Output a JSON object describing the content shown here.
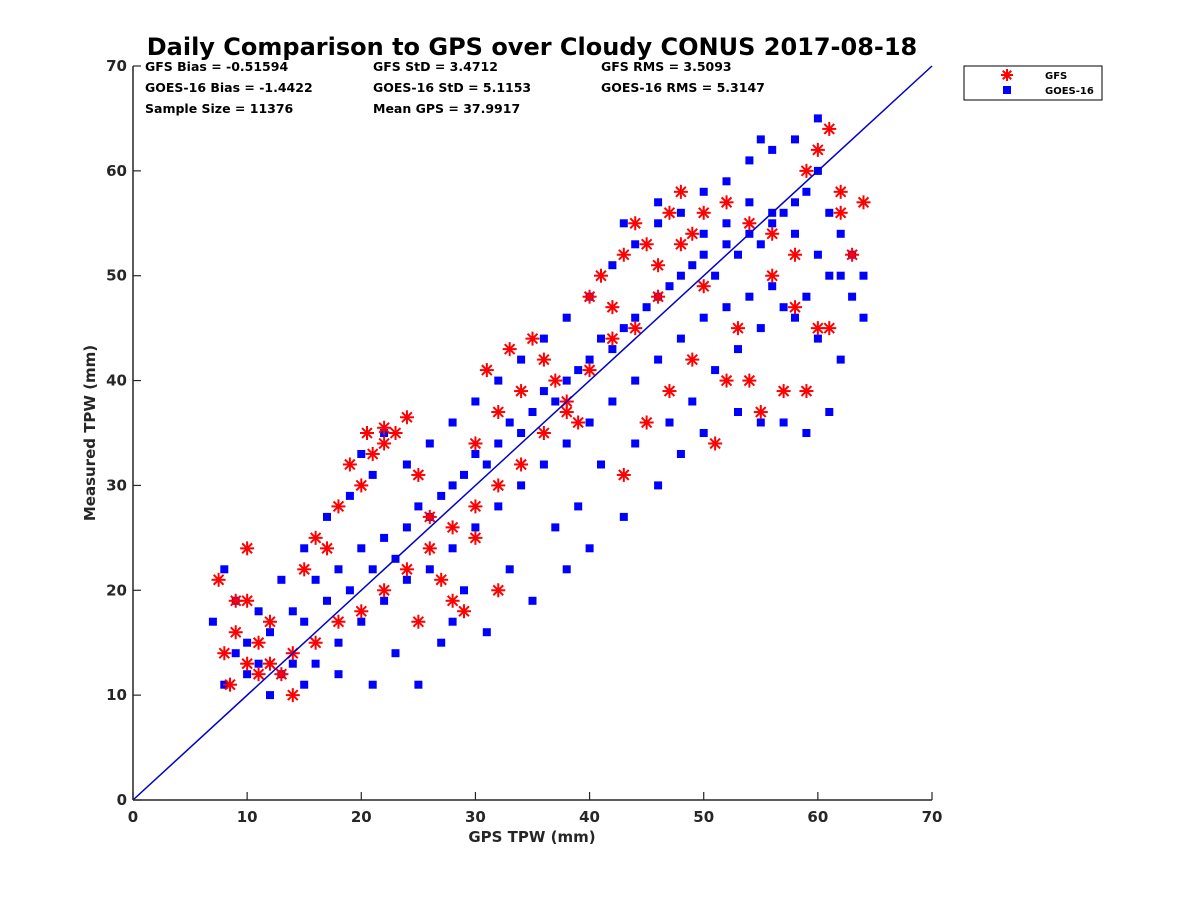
{
  "chart_data": {
    "type": "scatter",
    "title": "Daily Comparison to GPS over Cloudy CONUS 2017-08-18",
    "xlabel": "GPS TPW (mm)",
    "ylabel": "Measured TPW (mm)",
    "xlim": [
      0,
      70
    ],
    "ylim": [
      0,
      70
    ],
    "xticks": [
      0,
      10,
      20,
      30,
      40,
      50,
      60,
      70
    ],
    "yticks": [
      0,
      10,
      20,
      30,
      40,
      50,
      60,
      70
    ],
    "grid": false,
    "legend_position": "outside top-right",
    "stats": [
      {
        "label": "GFS Bias",
        "value": "-0.51594"
      },
      {
        "label": "GFS StD",
        "value": "3.4712"
      },
      {
        "label": "GFS RMS",
        "value": "3.5093"
      },
      {
        "label": "GOES-16 Bias",
        "value": "-1.4422"
      },
      {
        "label": "GOES-16 StD",
        "value": "5.1153"
      },
      {
        "label": "GOES-16 RMS",
        "value": "5.3147"
      },
      {
        "label": "Sample Size",
        "value": "11376"
      },
      {
        "label": "Mean GPS",
        "value": "37.9917"
      }
    ],
    "reference_line": {
      "name": "1:1 line",
      "x": [
        0,
        70
      ],
      "y": [
        0,
        70
      ],
      "color": "#0000cc"
    },
    "series": [
      {
        "name": "GOES-16",
        "marker": "square",
        "color": "#0000ff",
        "points": [
          [
            8,
            11
          ],
          [
            9,
            14
          ],
          [
            10,
            12
          ],
          [
            11,
            13
          ],
          [
            12,
            16
          ],
          [
            13,
            12
          ],
          [
            14,
            18
          ],
          [
            15,
            17
          ],
          [
            16,
            21
          ],
          [
            17,
            19
          ],
          [
            18,
            22
          ],
          [
            19,
            20
          ],
          [
            20,
            24
          ],
          [
            21,
            22
          ],
          [
            22,
            25
          ],
          [
            23,
            23
          ],
          [
            24,
            26
          ],
          [
            25,
            28
          ],
          [
            26,
            27
          ],
          [
            27,
            29
          ],
          [
            28,
            30
          ],
          [
            29,
            31
          ],
          [
            30,
            33
          ],
          [
            31,
            32
          ],
          [
            32,
            34
          ],
          [
            33,
            36
          ],
          [
            34,
            35
          ],
          [
            35,
            37
          ],
          [
            36,
            39
          ],
          [
            37,
            38
          ],
          [
            38,
            40
          ],
          [
            39,
            41
          ],
          [
            40,
            42
          ],
          [
            41,
            44
          ],
          [
            42,
            43
          ],
          [
            43,
            45
          ],
          [
            44,
            46
          ],
          [
            45,
            47
          ],
          [
            46,
            48
          ],
          [
            47,
            49
          ],
          [
            48,
            50
          ],
          [
            49,
            51
          ],
          [
            50,
            52
          ],
          [
            51,
            50
          ],
          [
            52,
            53
          ],
          [
            53,
            52
          ],
          [
            54,
            54
          ],
          [
            55,
            53
          ],
          [
            56,
            55
          ],
          [
            57,
            56
          ],
          [
            58,
            57
          ],
          [
            59,
            58
          ],
          [
            60,
            60
          ],
          [
            61,
            56
          ],
          [
            62,
            54
          ],
          [
            63,
            52
          ],
          [
            64,
            50
          ],
          [
            20,
            17
          ],
          [
            22,
            19
          ],
          [
            24,
            21
          ],
          [
            26,
            22
          ],
          [
            28,
            24
          ],
          [
            30,
            26
          ],
          [
            32,
            28
          ],
          [
            34,
            30
          ],
          [
            36,
            32
          ],
          [
            38,
            34
          ],
          [
            40,
            36
          ],
          [
            42,
            38
          ],
          [
            44,
            40
          ],
          [
            46,
            42
          ],
          [
            48,
            44
          ],
          [
            50,
            46
          ],
          [
            52,
            47
          ],
          [
            54,
            48
          ],
          [
            56,
            49
          ],
          [
            58,
            46
          ],
          [
            60,
            44
          ],
          [
            62,
            42
          ],
          [
            16,
            13
          ],
          [
            18,
            15
          ],
          [
            12,
            10
          ],
          [
            25,
            11
          ],
          [
            28,
            17
          ],
          [
            31,
            16
          ],
          [
            35,
            19
          ],
          [
            38,
            22
          ],
          [
            40,
            24
          ],
          [
            43,
            27
          ],
          [
            46,
            30
          ],
          [
            48,
            33
          ],
          [
            50,
            35
          ],
          [
            53,
            37
          ],
          [
            55,
            36
          ],
          [
            57,
            36
          ],
          [
            59,
            35
          ],
          [
            61,
            37
          ],
          [
            43,
            55
          ],
          [
            46,
            57
          ],
          [
            50,
            58
          ],
          [
            52,
            59
          ],
          [
            54,
            61
          ],
          [
            56,
            62
          ],
          [
            58,
            63
          ],
          [
            60,
            65
          ],
          [
            55,
            63
          ],
          [
            20,
            33
          ],
          [
            22,
            35
          ],
          [
            24,
            32
          ],
          [
            26,
            34
          ],
          [
            28,
            36
          ],
          [
            30,
            38
          ],
          [
            32,
            40
          ],
          [
            34,
            42
          ],
          [
            36,
            44
          ],
          [
            38,
            46
          ],
          [
            40,
            48
          ],
          [
            42,
            51
          ],
          [
            44,
            53
          ],
          [
            46,
            55
          ],
          [
            48,
            56
          ],
          [
            17,
            27
          ],
          [
            19,
            29
          ],
          [
            21,
            31
          ],
          [
            15,
            24
          ],
          [
            13,
            21
          ],
          [
            11,
            18
          ],
          [
            9,
            19
          ],
          [
            7,
            17
          ],
          [
            8,
            22
          ],
          [
            10,
            15
          ],
          [
            14,
            13
          ],
          [
            15,
            11
          ],
          [
            18,
            12
          ],
          [
            21,
            11
          ],
          [
            23,
            14
          ],
          [
            27,
            15
          ],
          [
            29,
            20
          ],
          [
            33,
            22
          ],
          [
            37,
            26
          ],
          [
            39,
            28
          ],
          [
            41,
            32
          ],
          [
            44,
            34
          ],
          [
            47,
            36
          ],
          [
            49,
            38
          ],
          [
            51,
            41
          ],
          [
            53,
            43
          ],
          [
            55,
            45
          ],
          [
            57,
            47
          ],
          [
            59,
            48
          ],
          [
            61,
            50
          ],
          [
            63,
            48
          ],
          [
            64,
            46
          ],
          [
            62,
            50
          ],
          [
            60,
            52
          ],
          [
            58,
            54
          ],
          [
            56,
            56
          ],
          [
            54,
            57
          ],
          [
            52,
            55
          ],
          [
            50,
            54
          ]
        ]
      },
      {
        "name": "GFS",
        "marker": "asterisk",
        "color": "#ff0000",
        "points": [
          [
            7.5,
            21
          ],
          [
            8,
            14
          ],
          [
            8.5,
            11
          ],
          [
            9,
            16
          ],
          [
            9,
            19
          ],
          [
            10,
            13
          ],
          [
            10,
            24
          ],
          [
            10,
            19
          ],
          [
            11,
            15
          ],
          [
            11,
            12
          ],
          [
            12,
            17
          ],
          [
            13,
            12
          ],
          [
            14,
            10
          ],
          [
            15,
            22
          ],
          [
            16,
            25
          ],
          [
            17,
            24
          ],
          [
            18,
            28
          ],
          [
            19,
            32
          ],
          [
            20,
            30
          ],
          [
            20.5,
            35
          ],
          [
            21,
            33
          ],
          [
            22,
            35.5
          ],
          [
            22,
            34
          ],
          [
            23,
            35
          ],
          [
            24,
            36.5
          ],
          [
            25,
            31
          ],
          [
            26,
            27
          ],
          [
            27,
            21
          ],
          [
            28,
            19
          ],
          [
            29,
            18
          ],
          [
            30,
            34
          ],
          [
            31,
            41
          ],
          [
            32,
            37
          ],
          [
            33,
            43
          ],
          [
            34,
            39
          ],
          [
            35,
            44
          ],
          [
            36,
            42
          ],
          [
            37,
            40
          ],
          [
            38,
            38
          ],
          [
            39,
            36
          ],
          [
            40,
            48
          ],
          [
            41,
            50
          ],
          [
            42,
            47
          ],
          [
            43,
            52
          ],
          [
            44,
            55
          ],
          [
            45,
            53
          ],
          [
            46,
            51
          ],
          [
            47,
            56
          ],
          [
            48,
            58
          ],
          [
            49,
            54
          ],
          [
            50,
            49
          ],
          [
            51,
            34
          ],
          [
            52,
            40
          ],
          [
            53,
            45
          ],
          [
            54,
            40
          ],
          [
            55,
            37
          ],
          [
            56,
            50
          ],
          [
            57,
            39
          ],
          [
            58,
            47
          ],
          [
            59,
            39
          ],
          [
            59,
            60
          ],
          [
            60,
            62
          ],
          [
            61,
            64
          ],
          [
            62,
            58
          ],
          [
            62,
            56
          ],
          [
            63,
            52
          ],
          [
            64,
            57
          ],
          [
            61,
            45
          ],
          [
            58,
            52
          ],
          [
            56,
            54
          ],
          [
            54,
            55
          ],
          [
            52,
            57
          ],
          [
            50,
            56
          ],
          [
            48,
            53
          ],
          [
            46,
            48
          ],
          [
            44,
            45
          ],
          [
            42,
            44
          ],
          [
            40,
            41
          ],
          [
            38,
            37
          ],
          [
            36,
            35
          ],
          [
            34,
            32
          ],
          [
            32,
            30
          ],
          [
            30,
            28
          ],
          [
            28,
            26
          ],
          [
            26,
            24
          ],
          [
            24,
            22
          ],
          [
            22,
            20
          ],
          [
            20,
            18
          ],
          [
            18,
            17
          ],
          [
            16,
            15
          ],
          [
            14,
            14
          ],
          [
            12,
            13
          ],
          [
            43,
            31
          ],
          [
            45,
            36
          ],
          [
            47,
            39
          ],
          [
            49,
            42
          ],
          [
            32,
            20
          ],
          [
            30,
            25
          ],
          [
            25,
            17
          ],
          [
            60,
            45
          ]
        ]
      }
    ]
  }
}
